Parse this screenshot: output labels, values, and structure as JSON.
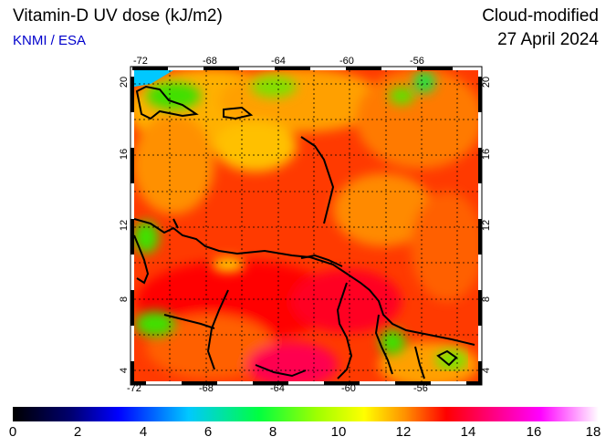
{
  "header": {
    "title": "Vitamin-D UV dose (kJ/m2)",
    "organization": "KNMI / ESA",
    "product": "Cloud-modified",
    "date": "27 April 2024"
  },
  "map": {
    "longitude_ticks": [
      "-72",
      "-68",
      "-64",
      "-60",
      "-56"
    ],
    "latitude_ticks": [
      "20",
      "16",
      "12",
      "8",
      "4"
    ],
    "lon_range": [
      -72,
      -52
    ],
    "lat_range": [
      3,
      21
    ],
    "grid": true
  },
  "colorbar": {
    "labels": [
      "0",
      "2",
      "4",
      "6",
      "8",
      "10",
      "12",
      "14",
      "16",
      "18"
    ],
    "range": [
      0,
      18
    ],
    "colors": [
      "#000000",
      "#0000ff",
      "#00ffff",
      "#00ff00",
      "#ffff00",
      "#ff8000",
      "#ff0000",
      "#ff00a0",
      "#ff00ff",
      "#ffffff"
    ]
  }
}
